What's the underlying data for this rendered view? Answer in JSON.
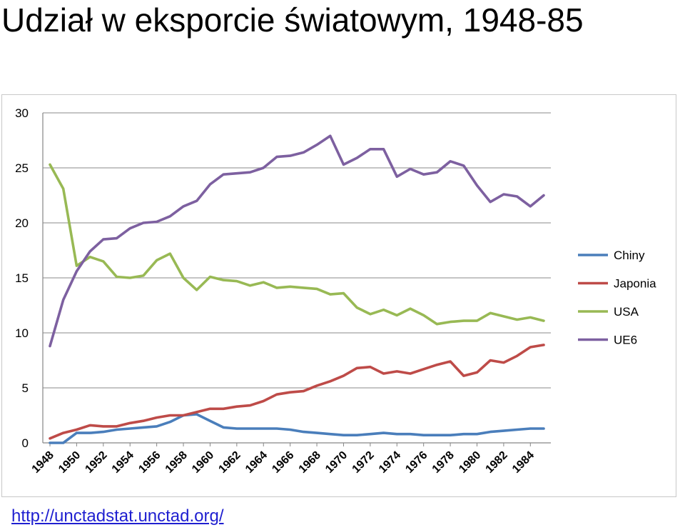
{
  "title": "Udział w eksporcie światowym, 1948-85",
  "source_link": "http://unctadstat.unctad.org/",
  "chart_data": {
    "type": "line",
    "title": "Udział w eksporcie światowym, 1948-85",
    "xlabel": "",
    "ylabel": "",
    "ylim": [
      0,
      30
    ],
    "yticks": [
      0,
      5,
      10,
      15,
      20,
      25,
      30
    ],
    "xlim": [
      1948,
      1985
    ],
    "xticks": [
      1948,
      1950,
      1952,
      1954,
      1956,
      1958,
      1960,
      1962,
      1964,
      1966,
      1968,
      1970,
      1972,
      1974,
      1976,
      1978,
      1980,
      1982,
      1984
    ],
    "grid": true,
    "legend_position": "right",
    "x": [
      1948,
      1949,
      1950,
      1951,
      1952,
      1953,
      1954,
      1955,
      1956,
      1957,
      1958,
      1959,
      1960,
      1961,
      1962,
      1963,
      1964,
      1965,
      1966,
      1967,
      1968,
      1969,
      1970,
      1971,
      1972,
      1973,
      1974,
      1975,
      1976,
      1977,
      1978,
      1979,
      1980,
      1981,
      1982,
      1983,
      1984,
      1985
    ],
    "series": [
      {
        "name": "Chiny",
        "color": "#4a7ebb",
        "values": [
          0.0,
          0.0,
          0.9,
          0.9,
          1.0,
          1.2,
          1.3,
          1.4,
          1.5,
          1.9,
          2.5,
          2.6,
          2.0,
          1.4,
          1.3,
          1.3,
          1.3,
          1.3,
          1.2,
          1.0,
          0.9,
          0.8,
          0.7,
          0.7,
          0.8,
          0.9,
          0.8,
          0.8,
          0.7,
          0.7,
          0.7,
          0.8,
          0.8,
          1.0,
          1.1,
          1.2,
          1.3,
          1.3
        ]
      },
      {
        "name": "Japonia",
        "color": "#be4b48",
        "values": [
          0.4,
          0.9,
          1.2,
          1.6,
          1.5,
          1.5,
          1.8,
          2.0,
          2.3,
          2.5,
          2.5,
          2.8,
          3.1,
          3.1,
          3.3,
          3.4,
          3.8,
          4.4,
          4.6,
          4.7,
          5.2,
          5.6,
          6.1,
          6.8,
          6.9,
          6.3,
          6.5,
          6.3,
          6.7,
          7.1,
          7.4,
          6.1,
          6.4,
          7.5,
          7.3,
          7.9,
          8.7,
          8.9
        ]
      },
      {
        "name": "USA",
        "color": "#98b954",
        "values": [
          25.3,
          23.1,
          16.1,
          16.9,
          16.5,
          15.1,
          15.0,
          15.2,
          16.6,
          17.2,
          15.0,
          13.9,
          15.1,
          14.8,
          14.7,
          14.3,
          14.6,
          14.1,
          14.2,
          14.1,
          14.0,
          13.5,
          13.6,
          12.3,
          11.7,
          12.1,
          11.6,
          12.2,
          11.6,
          10.8,
          11.0,
          11.1,
          11.1,
          11.8,
          11.5,
          11.2,
          11.4,
          11.1
        ]
      },
      {
        "name": "UE6",
        "color": "#7d60a0",
        "values": [
          8.8,
          13.0,
          15.6,
          17.4,
          18.5,
          18.6,
          19.5,
          20.0,
          20.1,
          20.6,
          21.5,
          22.0,
          23.5,
          24.4,
          24.5,
          24.6,
          25.0,
          26.0,
          26.1,
          26.4,
          27.1,
          27.9,
          25.3,
          25.9,
          26.7,
          26.7,
          24.2,
          24.9,
          24.4,
          24.6,
          25.6,
          25.2,
          23.4,
          21.9,
          22.6,
          22.4,
          21.5,
          22.5
        ]
      }
    ],
    "gridline_color": "#a0a0a0"
  }
}
